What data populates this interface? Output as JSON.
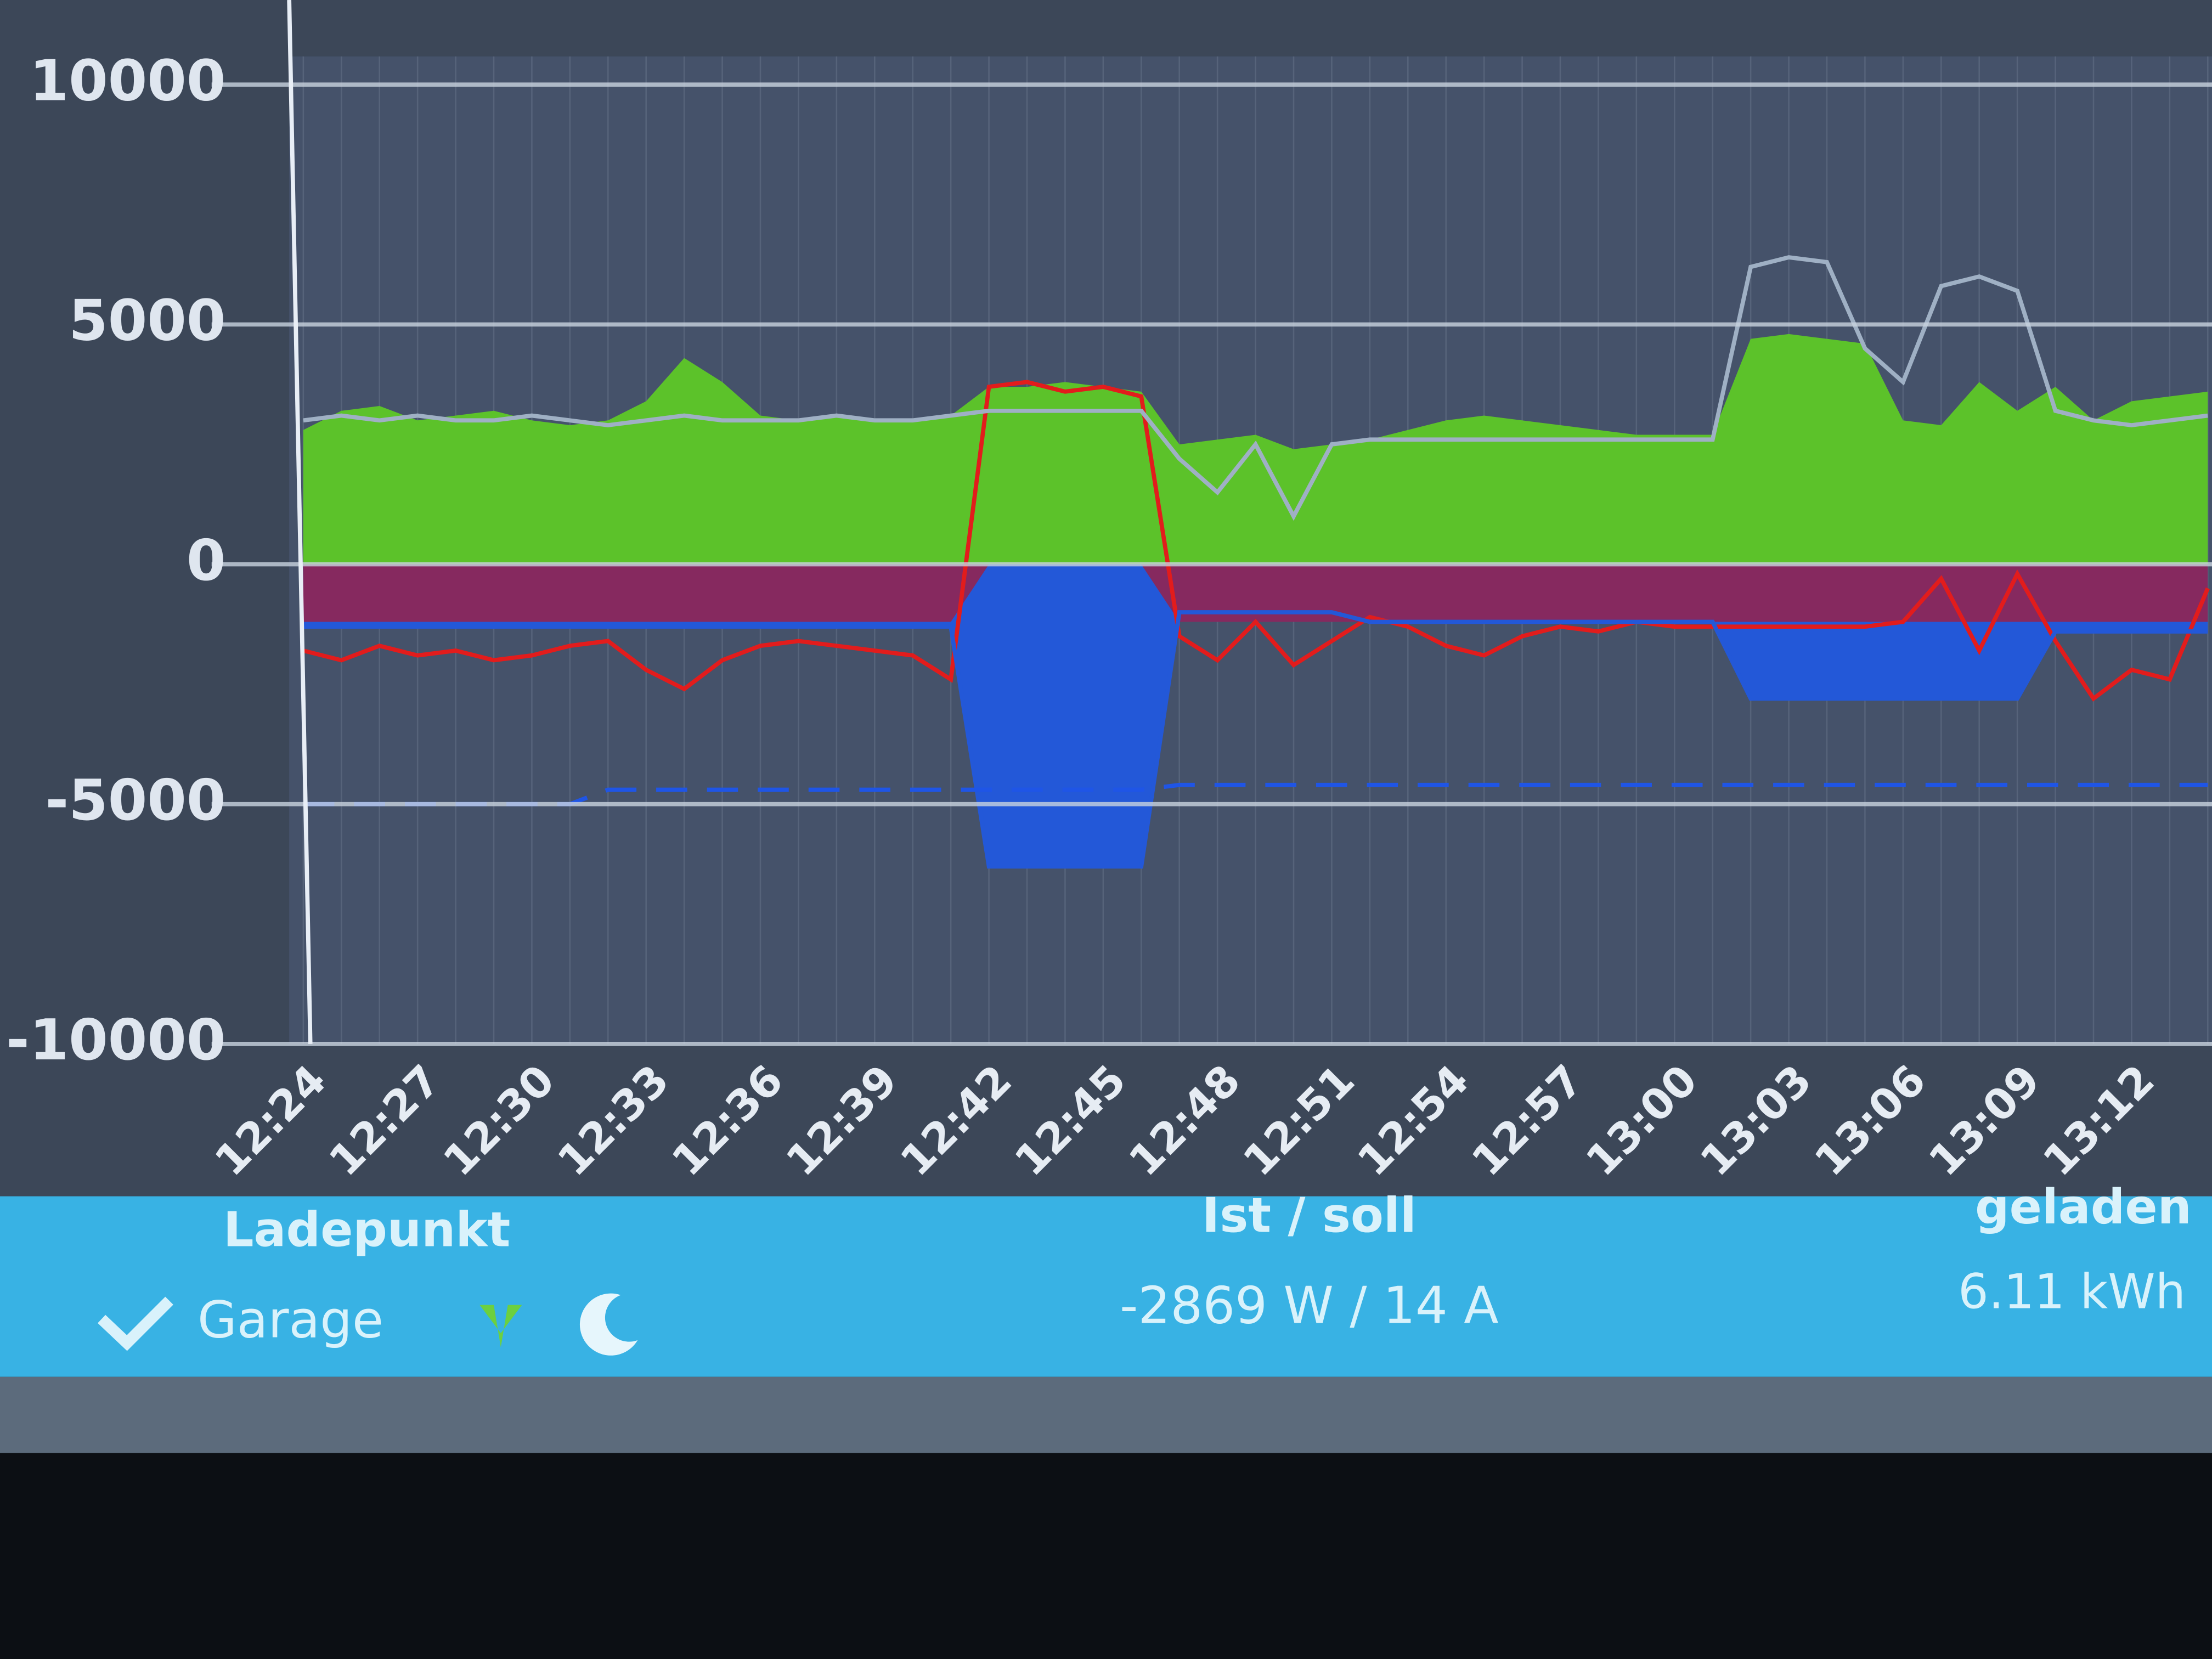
{
  "chart_data": {
    "type": "area-line",
    "categories": [
      "12:24",
      null,
      null,
      "12:27",
      null,
      null,
      "12:30",
      null,
      null,
      "12:33",
      null,
      null,
      "12:36",
      null,
      null,
      "12:39",
      null,
      null,
      "12:42",
      null,
      null,
      "12:45",
      null,
      null,
      "12:48",
      null,
      null,
      "12:51",
      null,
      null,
      "12:54",
      null,
      null,
      "12:57",
      null,
      null,
      "13:00",
      null,
      null,
      "13:03",
      null,
      null,
      "13:06",
      null,
      null,
      "13:09",
      null,
      null,
      "13:12",
      null,
      null
    ],
    "ylim": [
      -10000,
      10000
    ],
    "yticks": [
      -10000,
      -5000,
      0,
      5000,
      10000
    ],
    "grid": true,
    "series": [
      {
        "color": "#5cc22a",
        "style": "area",
        "values": [
          2800,
          3200,
          3300,
          3000,
          3100,
          3200,
          3000,
          2900,
          3000,
          3400,
          4300,
          3800,
          3100,
          3000,
          3100,
          3000,
          3000,
          3100,
          3700,
          3700,
          3800,
          3700,
          3600,
          2500,
          2600,
          2700,
          2400,
          2500,
          2600,
          2800,
          3000,
          3100,
          3000,
          2900,
          2800,
          2700,
          2700,
          2700,
          4700,
          4800,
          4700,
          4600,
          3000,
          2900,
          3800,
          3200,
          3700,
          3000,
          3400,
          3500,
          3600
        ]
      },
      {
        "color": "#2358d8",
        "style": "area",
        "values": [
          -1300,
          -1300,
          -1300,
          -1300,
          -1300,
          -1300,
          -1300,
          -1300,
          -1300,
          -1300,
          -1300,
          -1300,
          -1300,
          -1300,
          -1300,
          -1300,
          -1300,
          -1300,
          -6300,
          -6300,
          -6300,
          -6300,
          -6300,
          -1000,
          -1000,
          -1000,
          -1000,
          -1000,
          -1200,
          -1200,
          -1200,
          -1200,
          -1200,
          -1200,
          -1200,
          -1200,
          -1200,
          -1200,
          -2800,
          -2800,
          -2800,
          -2800,
          -2800,
          -2800,
          -2800,
          -2800,
          -1400,
          -1400,
          -1400,
          -1400,
          -1400
        ]
      },
      {
        "color": "#86295f",
        "style": "area",
        "values": [
          -1200,
          -1200,
          -1200,
          -1200,
          -1200,
          -1200,
          -1200,
          -1200,
          -1200,
          -1200,
          -1200,
          -1200,
          -1200,
          -1200,
          -1200,
          -1200,
          -1200,
          -1200,
          0,
          0,
          0,
          0,
          0,
          -1200,
          -1200,
          -1200,
          -1200,
          -1200,
          -1200,
          -1200,
          -1200,
          -1200,
          -1200,
          -1200,
          -1200,
          -1200,
          -1200,
          -1200,
          -1200,
          -1200,
          -1200,
          -1200,
          -1200,
          -1200,
          -1200,
          -1200,
          -1200,
          -1200,
          -1200,
          -1200,
          -1200
        ]
      },
      {
        "color": "#e21c1c",
        "style": "line",
        "values": [
          -1800,
          -2000,
          -1700,
          -1900,
          -1800,
          -2000,
          -1900,
          -1700,
          -1600,
          -2200,
          -2600,
          -2000,
          -1700,
          -1600,
          -1700,
          -1800,
          -1900,
          -2400,
          3700,
          3800,
          3600,
          3700,
          3500,
          -1500,
          -2000,
          -1200,
          -2100,
          -1600,
          -1100,
          -1300,
          -1700,
          -1900,
          -1500,
          -1300,
          -1400,
          -1200,
          -1300,
          -1300,
          -1300,
          -1300,
          -1300,
          -1300,
          -1200,
          -300,
          -1800,
          -200,
          -1600,
          -2800,
          -2200,
          -2400,
          -500
        ]
      },
      {
        "color": "#2358d8",
        "style": "line",
        "values": [
          -1300,
          -1300,
          -1300,
          -1300,
          -1300,
          -1300,
          -1300,
          -1300,
          -1300,
          -1300,
          -1300,
          -1300,
          -1300,
          -1300,
          -1300,
          -1300,
          -1300,
          -1300,
          -6300,
          -6300,
          -6300,
          -6300,
          -6300,
          -1000,
          -1000,
          -1000,
          -1000,
          -1000,
          -1200,
          -1200,
          -1200,
          -1200,
          -1200,
          -1200,
          -1200,
          -1200,
          -1200,
          -1200,
          -2800,
          -2800,
          -2800,
          -2800,
          -2800,
          -2800,
          -2800,
          -2800,
          -1400,
          -1400,
          -1400,
          -1400,
          -1400
        ]
      },
      {
        "color": "#1f55e6",
        "style": "dashed",
        "values": [
          -5000,
          -5000,
          -5000,
          -5000,
          -5000,
          -5000,
          -5000,
          -5000,
          -4700,
          -4700,
          -4700,
          -4700,
          -4700,
          -4700,
          -4700,
          -4700,
          -4700,
          -4700,
          -4700,
          -4700,
          -4700,
          -4700,
          -4700,
          -4600,
          -4600,
          -4600,
          -4600,
          -4600,
          -4600,
          -4600,
          -4600,
          -4600,
          -4600,
          -4600,
          -4600,
          -4600,
          -4600,
          -4600,
          -4600,
          -4600,
          -4600,
          -4600,
          -4600,
          -4600,
          -4600,
          -4600,
          -4600,
          -4600,
          -4600,
          -4600,
          -4600
        ]
      },
      {
        "color": "#9fb0c4",
        "style": "line",
        "values": [
          3000,
          3100,
          3000,
          3100,
          3000,
          3000,
          3100,
          3000,
          2900,
          3000,
          3100,
          3000,
          3000,
          3000,
          3100,
          3000,
          3000,
          3100,
          3200,
          3200,
          3200,
          3200,
          3200,
          2200,
          1500,
          2500,
          1000,
          2500,
          2600,
          2600,
          2600,
          2600,
          2600,
          2600,
          2600,
          2600,
          2600,
          2600,
          6200,
          6400,
          6300,
          4500,
          3800,
          5800,
          6000,
          5700,
          3200,
          3000,
          2900,
          3000,
          3100
        ]
      }
    ]
  },
  "table": {
    "headers": [
      "Ladepunkt",
      "Ist / soll",
      "geladen"
    ],
    "rows": [
      [
        "Garage",
        "-2869 W / 14 A",
        "6.11 kWh"
      ]
    ]
  }
}
